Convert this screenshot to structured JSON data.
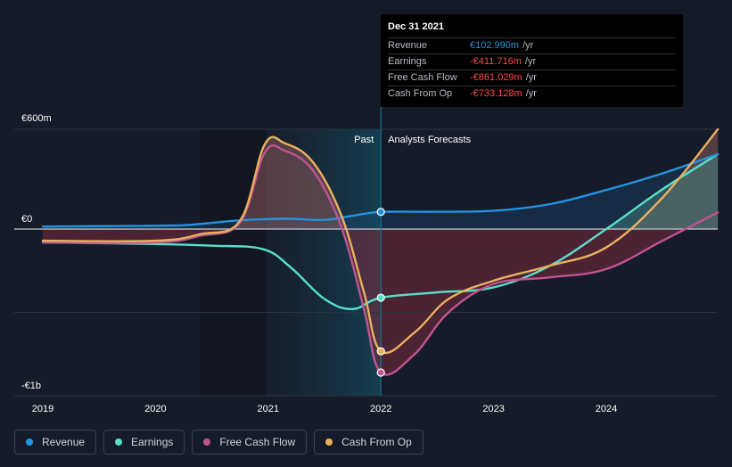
{
  "chart_data": {
    "type": "line",
    "x_ticks": [
      "2019",
      "2020",
      "2021",
      "2022",
      "2023",
      "2024"
    ],
    "y_labels": {
      "top": "€600m",
      "zero": "€0",
      "bottom": "-€1b"
    },
    "ylim": [
      -1000,
      600
    ],
    "past_label": "Past",
    "forecast_label": "Analysts Forecasts",
    "series": [
      {
        "name": "Revenue",
        "color": "#2394df",
        "points": [
          [
            2019.0,
            15
          ],
          [
            2020.0,
            20
          ],
          [
            2020.3,
            25
          ],
          [
            2020.7,
            50
          ],
          [
            2021.0,
            60
          ],
          [
            2021.2,
            62
          ],
          [
            2021.5,
            55
          ],
          [
            2021.75,
            80
          ],
          [
            2022.0,
            103
          ],
          [
            2022.5,
            104
          ],
          [
            2023.0,
            110
          ],
          [
            2023.5,
            150
          ],
          [
            2024.0,
            235
          ],
          [
            2024.5,
            335
          ],
          [
            2024.99,
            450
          ]
        ]
      },
      {
        "name": "Earnings",
        "color": "#58dfc9",
        "points": [
          [
            2019.0,
            -80
          ],
          [
            2020.0,
            -90
          ],
          [
            2020.5,
            -100
          ],
          [
            2020.95,
            -120
          ],
          [
            2021.2,
            -230
          ],
          [
            2021.5,
            -420
          ],
          [
            2021.75,
            -480
          ],
          [
            2022.0,
            -412
          ],
          [
            2022.5,
            -380
          ],
          [
            2023.0,
            -350
          ],
          [
            2023.5,
            -220
          ],
          [
            2024.0,
            0
          ],
          [
            2024.5,
            240
          ],
          [
            2024.99,
            450
          ]
        ]
      },
      {
        "name": "Free Cash Flow",
        "color": "#c05491",
        "points": [
          [
            2019.0,
            -80
          ],
          [
            2020.0,
            -80
          ],
          [
            2020.4,
            -40
          ],
          [
            2020.75,
            40
          ],
          [
            2020.97,
            460
          ],
          [
            2021.15,
            470
          ],
          [
            2021.4,
            350
          ],
          [
            2021.65,
            10
          ],
          [
            2021.85,
            -480
          ],
          [
            2022.0,
            -861
          ],
          [
            2022.3,
            -750
          ],
          [
            2022.6,
            -500
          ],
          [
            2023.0,
            -330
          ],
          [
            2023.5,
            -290
          ],
          [
            2024.0,
            -240
          ],
          [
            2024.5,
            -70
          ],
          [
            2024.99,
            100
          ]
        ]
      },
      {
        "name": "Cash From Op",
        "color": "#eab05f",
        "points": [
          [
            2019.0,
            -70
          ],
          [
            2020.0,
            -70
          ],
          [
            2020.4,
            -30
          ],
          [
            2020.75,
            50
          ],
          [
            2020.97,
            510
          ],
          [
            2021.15,
            515
          ],
          [
            2021.4,
            400
          ],
          [
            2021.65,
            80
          ],
          [
            2021.85,
            -380
          ],
          [
            2022.0,
            -733
          ],
          [
            2022.3,
            -620
          ],
          [
            2022.6,
            -420
          ],
          [
            2023.0,
            -310
          ],
          [
            2023.5,
            -220
          ],
          [
            2024.0,
            -110
          ],
          [
            2024.5,
            190
          ],
          [
            2024.99,
            600
          ]
        ]
      }
    ],
    "highlight_x": 2022.0
  },
  "tooltip": {
    "date": "Dec 31 2021",
    "rows": [
      {
        "label": "Revenue",
        "value": "€102.990m",
        "unit": "/yr",
        "color": "#2394df"
      },
      {
        "label": "Earnings",
        "value": "-€411.716m",
        "unit": "/yr",
        "color": "#ff4a4a"
      },
      {
        "label": "Free Cash Flow",
        "value": "-€861.029m",
        "unit": "/yr",
        "color": "#ff4a4a"
      },
      {
        "label": "Cash From Op",
        "value": "-€733.128m",
        "unit": "/yr",
        "color": "#ff4a4a"
      }
    ]
  },
  "legend": [
    {
      "label": "Revenue",
      "color": "#2394df"
    },
    {
      "label": "Earnings",
      "color": "#58dfc9"
    },
    {
      "label": "Free Cash Flow",
      "color": "#c05491"
    },
    {
      "label": "Cash From Op",
      "color": "#eab05f"
    }
  ]
}
